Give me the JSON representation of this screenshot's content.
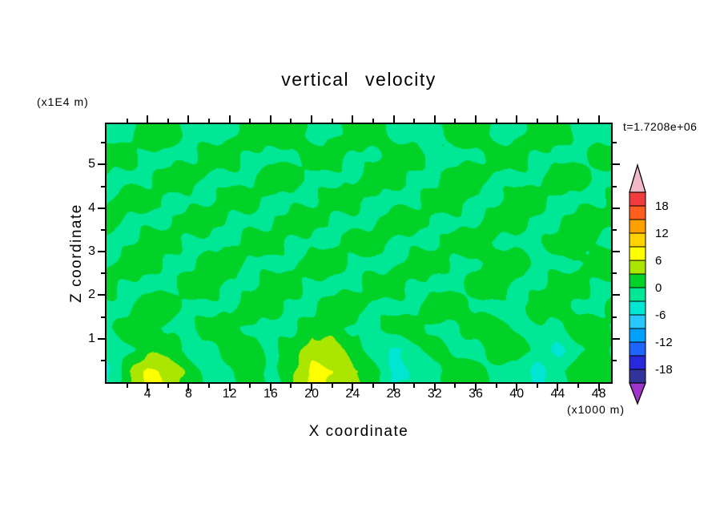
{
  "title": "vertical velocity",
  "timestamp_label": "t=1.7208e+06",
  "axes": {
    "x": {
      "label": "X coordinate",
      "unit_label": "(x1000 m)",
      "min": 0,
      "max": 49.2,
      "major_ticks": [
        4,
        8,
        12,
        16,
        20,
        24,
        28,
        32,
        36,
        40,
        44,
        48
      ],
      "minor_step": 2
    },
    "z": {
      "label": "Z coordinate",
      "unit_label": "(x1E4 m)",
      "min": 0,
      "max": 5.93,
      "major_ticks": [
        1,
        2,
        3,
        4,
        5
      ],
      "minor_step": 0.5
    }
  },
  "colorbar": {
    "tick_labels": [
      "18",
      "12",
      "6",
      "0",
      "-6",
      "-12",
      "-18"
    ]
  },
  "chart_data": {
    "type": "heatmap",
    "title": "vertical velocity",
    "xlabel": "X coordinate (x1000 m)",
    "ylabel": "Z coordinate (x1E4 m)",
    "x_range": [
      0,
      49.2
    ],
    "z_range": [
      0,
      5.93
    ],
    "contour_interval": 3,
    "levels": [
      -21,
      -18,
      -15,
      -12,
      -9,
      -6,
      -3,
      0,
      3,
      6,
      9,
      12,
      15,
      18,
      21
    ],
    "colors_low_to_high": [
      "#32329b",
      "#2828dc",
      "#1e64ff",
      "#00a0ff",
      "#28c8ff",
      "#00e6d2",
      "#00e796",
      "#00d228",
      "#aae600",
      "#ffff00",
      "#ffd200",
      "#ffa000",
      "#ff5f1e",
      "#f03c3c"
    ],
    "arrow_low_color": "#a034c8",
    "arrow_high_color": "#f0b9c8",
    "grid": {
      "x": [
        0,
        2,
        4,
        6,
        8,
        10,
        12,
        14,
        16,
        18,
        20,
        22,
        24,
        26,
        28,
        30,
        32,
        34,
        36,
        38,
        40,
        42,
        44,
        46,
        48,
        50
      ],
      "z": [
        0.25,
        0.74,
        1.24,
        1.73,
        2.22,
        2.72,
        3.21,
        3.7,
        4.2,
        4.69,
        5.18,
        5.68
      ],
      "values": [
        [
          -4,
          2,
          7,
          5,
          2,
          -1,
          -1,
          2,
          -1,
          2,
          7,
          6,
          4,
          2,
          -4,
          -2,
          -1,
          2,
          2,
          -1,
          -2,
          -4,
          -1,
          2,
          3,
          -1
        ],
        [
          -2,
          -1,
          2,
          2,
          -1,
          -1,
          2,
          2,
          -1,
          2,
          4,
          4,
          2,
          -2,
          -4,
          -1,
          2,
          -1,
          -2,
          2,
          2,
          -1,
          -4,
          -1,
          2,
          -1
        ],
        [
          -1,
          2,
          2,
          -1,
          -1,
          2,
          2,
          -1,
          -1,
          -1,
          2,
          2,
          -1,
          -1,
          2,
          2,
          -1,
          -1,
          2,
          2,
          -1,
          -1,
          -1,
          2,
          2,
          -1
        ],
        [
          -1,
          -1,
          2,
          2,
          -1,
          -1,
          -1,
          2,
          2,
          -1,
          -1,
          2,
          2,
          -1,
          -1,
          -1,
          2,
          2,
          -1,
          -1,
          -1,
          2,
          2,
          -1,
          -1,
          2
        ],
        [
          2,
          -1,
          -1,
          -1,
          2,
          2,
          -1,
          -1,
          2,
          2,
          -1,
          -1,
          -1,
          2,
          2,
          -1,
          -1,
          -1,
          2,
          2,
          -1,
          -1,
          2,
          2,
          -1,
          -1
        ],
        [
          -1,
          2,
          2,
          -1,
          -1,
          2,
          2,
          -1,
          -1,
          -1,
          2,
          2,
          -1,
          -1,
          -1,
          2,
          2,
          -1,
          -1,
          2,
          2,
          -1,
          -1,
          -1,
          2,
          2
        ],
        [
          -1,
          -1,
          2,
          2,
          -1,
          -1,
          -1,
          2,
          2,
          -1,
          -1,
          -1,
          2,
          2,
          -1,
          -1,
          -1,
          2,
          2,
          -1,
          -1,
          -1,
          2,
          2,
          -1,
          -1
        ],
        [
          2,
          -1,
          -1,
          -1,
          2,
          2,
          -1,
          -1,
          -1,
          2,
          2,
          -1,
          -1,
          -1,
          2,
          2,
          -1,
          -1,
          -1,
          2,
          2,
          -1,
          -1,
          2,
          2,
          -1
        ],
        [
          -1,
          2,
          2,
          -1,
          -1,
          -1,
          2,
          2,
          -1,
          -1,
          -1,
          2,
          2,
          -1,
          -1,
          -1,
          2,
          2,
          -1,
          -1,
          2,
          2,
          -1,
          -1,
          -1,
          2
        ],
        [
          -1,
          -1,
          -1,
          2,
          2,
          -1,
          -1,
          -1,
          2,
          2,
          -1,
          -1,
          -1,
          2,
          2,
          -1,
          -1,
          2,
          2,
          -1,
          -1,
          -1,
          2,
          2,
          -1,
          -1
        ],
        [
          2,
          2,
          -1,
          -1,
          -1,
          2,
          2,
          -1,
          -1,
          -1,
          2,
          2,
          -1,
          -1,
          2,
          2,
          -1,
          -1,
          -1,
          2,
          2,
          -1,
          -1,
          -1,
          2,
          2
        ],
        [
          -1,
          -1,
          2,
          2,
          -1,
          -1,
          -1,
          2,
          2,
          2,
          -1,
          -1,
          2,
          2,
          -1,
          -1,
          -1,
          2,
          2,
          -1,
          -1,
          2,
          2,
          -1,
          -1,
          -1
        ]
      ]
    }
  }
}
